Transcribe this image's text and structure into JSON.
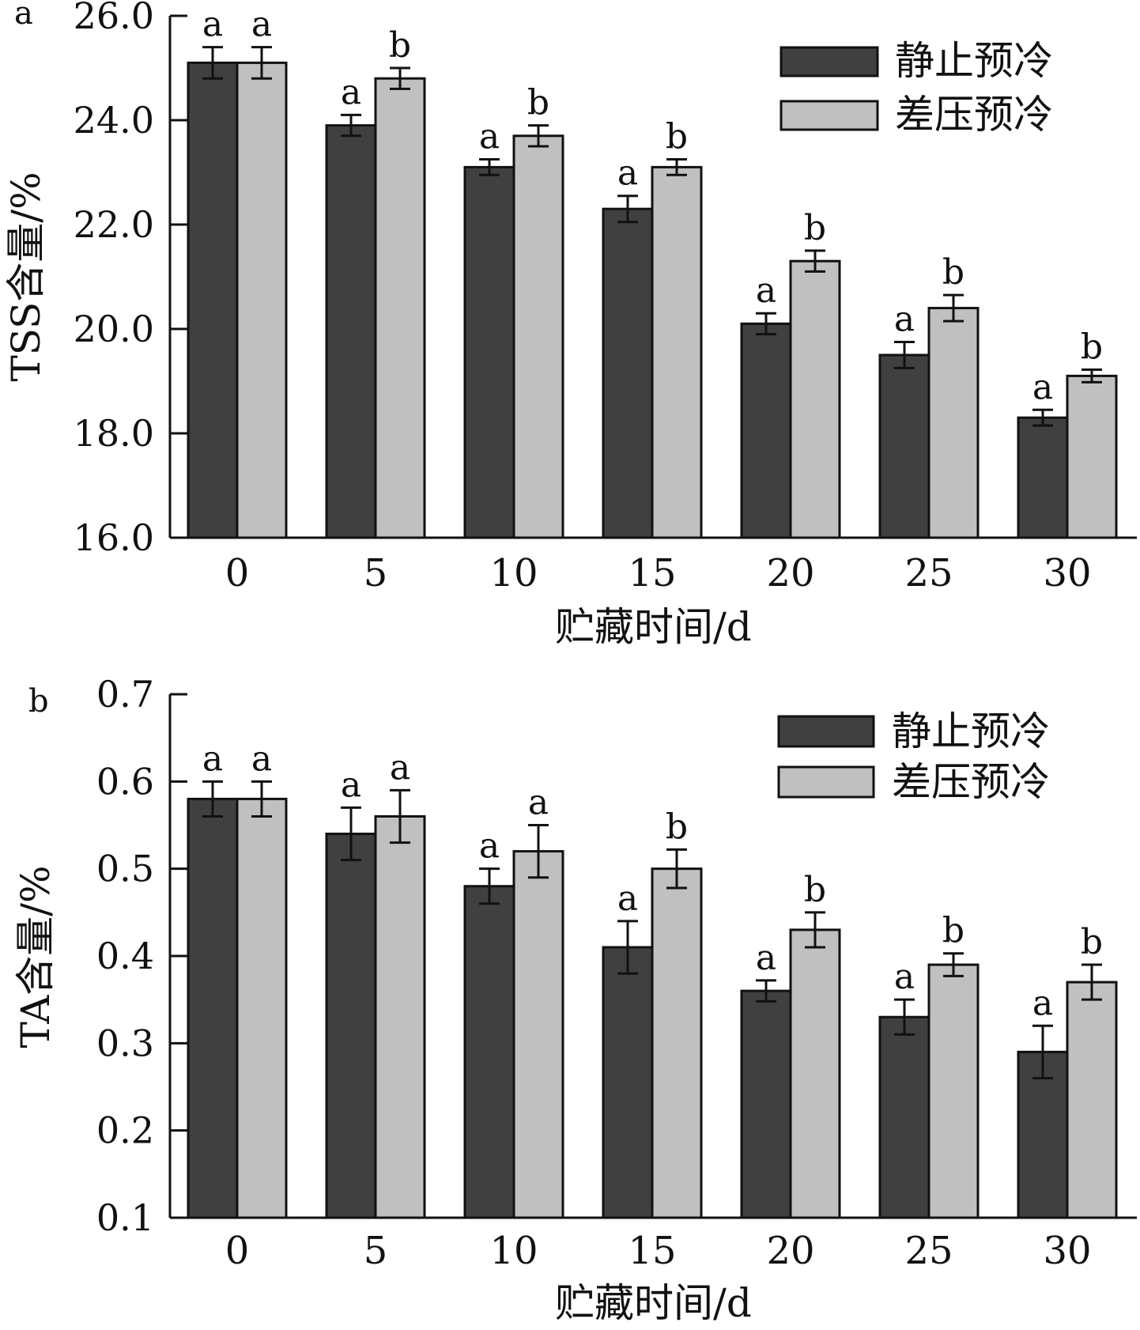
{
  "colors": {
    "static": "#404040",
    "forced": "#c0c0c0",
    "ink": "#111111"
  },
  "chart_data": [
    {
      "panel_label": "a",
      "type": "bar",
      "xlabel": "贮藏时间/d",
      "ylabel": "TSS含量/%",
      "ylim": [
        16.0,
        26.0
      ],
      "yticks": [
        16.0,
        18.0,
        20.0,
        22.0,
        24.0,
        26.0
      ],
      "ytick_labels": [
        "16.0",
        "18.0",
        "20.0",
        "22.0",
        "24.0",
        "26.0"
      ],
      "categories": [
        "0",
        "5",
        "10",
        "15",
        "20",
        "25",
        "30"
      ],
      "legend_position": "top-right",
      "series": [
        {
          "name": "静止预冷",
          "color": "#404040",
          "values": [
            25.1,
            23.9,
            23.1,
            22.3,
            20.1,
            19.5,
            18.3
          ],
          "errors": [
            0.3,
            0.2,
            0.15,
            0.25,
            0.2,
            0.25,
            0.15
          ],
          "letters": [
            "a",
            "a",
            "a",
            "a",
            "a",
            "a",
            "a"
          ]
        },
        {
          "name": "差压预冷",
          "color": "#c0c0c0",
          "values": [
            25.1,
            24.8,
            23.7,
            23.1,
            21.3,
            20.4,
            19.1
          ],
          "errors": [
            0.3,
            0.2,
            0.2,
            0.15,
            0.2,
            0.25,
            0.12
          ],
          "letters": [
            "a",
            "b",
            "b",
            "b",
            "b",
            "b",
            "b"
          ]
        }
      ]
    },
    {
      "panel_label": "b",
      "type": "bar",
      "xlabel": "贮藏时间/d",
      "ylabel": "TA含量/%",
      "ylim": [
        0.1,
        0.7
      ],
      "yticks": [
        0.1,
        0.2,
        0.3,
        0.4,
        0.5,
        0.6,
        0.7
      ],
      "ytick_labels": [
        "0.1",
        "0.2",
        "0.3",
        "0.4",
        "0.5",
        "0.6",
        "0.7"
      ],
      "categories": [
        "0",
        "5",
        "10",
        "15",
        "20",
        "25",
        "30"
      ],
      "legend_position": "top-right",
      "series": [
        {
          "name": "静止预冷",
          "color": "#404040",
          "values": [
            0.58,
            0.54,
            0.48,
            0.41,
            0.36,
            0.33,
            0.29
          ],
          "errors": [
            0.02,
            0.03,
            0.02,
            0.03,
            0.012,
            0.02,
            0.03
          ],
          "letters": [
            "a",
            "a",
            "a",
            "a",
            "a",
            "a",
            "a"
          ]
        },
        {
          "name": "差压预冷",
          "color": "#c0c0c0",
          "values": [
            0.58,
            0.56,
            0.52,
            0.5,
            0.43,
            0.39,
            0.37
          ],
          "errors": [
            0.02,
            0.03,
            0.03,
            0.022,
            0.02,
            0.013,
            0.02
          ],
          "letters": [
            "a",
            "a",
            "a",
            "b",
            "b",
            "b",
            "b"
          ]
        }
      ]
    }
  ]
}
